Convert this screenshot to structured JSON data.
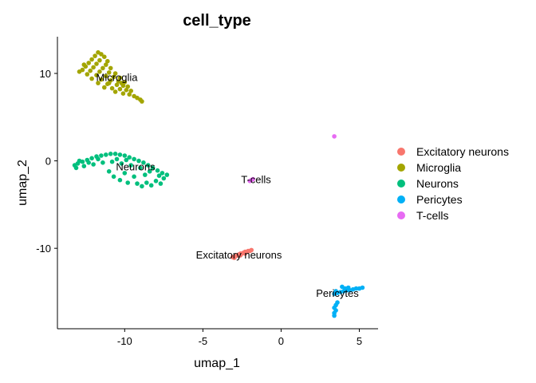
{
  "chart_data": {
    "type": "scatter",
    "title": "cell_type",
    "xlabel": "umap_1",
    "ylabel": "umap_2",
    "xlim": [
      -14.3,
      6.2
    ],
    "ylim": [
      -19.2,
      14.2
    ],
    "xticks": [
      -10,
      -5,
      0,
      5
    ],
    "yticks": [
      -10,
      0,
      10
    ],
    "xtick_labels": [
      "-10",
      "-5",
      "0",
      "5"
    ],
    "ytick_labels": [
      "-10",
      "0",
      "10"
    ],
    "grid": false,
    "legend_position": "right",
    "series": [
      {
        "name": "Excitatory neurons",
        "color": "#F8766D",
        "points": [
          [
            -3.1,
            -11.0
          ],
          [
            -2.9,
            -10.9
          ],
          [
            -2.8,
            -10.8
          ],
          [
            -2.7,
            -10.7
          ],
          [
            -2.6,
            -10.6
          ],
          [
            -2.5,
            -10.6
          ],
          [
            -2.4,
            -10.5
          ],
          [
            -2.3,
            -10.4
          ],
          [
            -2.2,
            -10.4
          ],
          [
            -2.1,
            -10.3
          ],
          [
            -2.0,
            -10.3
          ],
          [
            -1.9,
            -10.2
          ],
          [
            -3.0,
            -11.1
          ],
          [
            -2.6,
            -10.8
          ],
          [
            -2.3,
            -10.6
          ]
        ]
      },
      {
        "name": "Microglia",
        "color": "#A3A500",
        "points": [
          [
            -11.7,
            12.4
          ],
          [
            -11.5,
            12.2
          ],
          [
            -11.9,
            12.0
          ],
          [
            -11.3,
            11.9
          ],
          [
            -12.1,
            11.6
          ],
          [
            -11.6,
            11.5
          ],
          [
            -11.1,
            11.4
          ],
          [
            -12.3,
            11.2
          ],
          [
            -11.8,
            11.1
          ],
          [
            -11.2,
            11.0
          ],
          [
            -12.5,
            10.8
          ],
          [
            -12.0,
            10.7
          ],
          [
            -11.4,
            10.6
          ],
          [
            -10.9,
            10.6
          ],
          [
            -12.7,
            10.4
          ],
          [
            -12.2,
            10.3
          ],
          [
            -11.6,
            10.2
          ],
          [
            -11.0,
            10.1
          ],
          [
            -10.6,
            10.0
          ],
          [
            -12.4,
            9.9
          ],
          [
            -11.8,
            9.8
          ],
          [
            -11.2,
            9.7
          ],
          [
            -10.7,
            9.6
          ],
          [
            -10.3,
            9.5
          ],
          [
            -12.1,
            9.4
          ],
          [
            -11.5,
            9.3
          ],
          [
            -10.9,
            9.2
          ],
          [
            -10.4,
            9.1
          ],
          [
            -10.0,
            9.0
          ],
          [
            -11.7,
            8.9
          ],
          [
            -11.1,
            8.8
          ],
          [
            -10.5,
            8.7
          ],
          [
            -10.1,
            8.6
          ],
          [
            -9.8,
            8.5
          ],
          [
            -11.3,
            8.4
          ],
          [
            -10.8,
            8.3
          ],
          [
            -10.3,
            8.2
          ],
          [
            -9.9,
            8.1
          ],
          [
            -9.6,
            8.0
          ],
          [
            -10.6,
            7.9
          ],
          [
            -10.1,
            7.7
          ],
          [
            -9.7,
            7.6
          ],
          [
            -9.4,
            7.4
          ],
          [
            -9.2,
            7.2
          ],
          [
            -9.0,
            7.0
          ],
          [
            -8.9,
            6.8
          ],
          [
            -12.6,
            11.0
          ],
          [
            -11.0,
            8.9
          ],
          [
            -10.2,
            8.9
          ],
          [
            -12.9,
            10.2
          ]
        ]
      },
      {
        "name": "Neurons",
        "color": "#00BF7D",
        "points": [
          [
            -13.2,
            -0.5
          ],
          [
            -13.0,
            -0.3
          ],
          [
            -12.7,
            -0.1
          ],
          [
            -12.4,
            0.1
          ],
          [
            -12.1,
            0.3
          ],
          [
            -11.8,
            0.5
          ],
          [
            -11.5,
            0.6
          ],
          [
            -11.2,
            0.7
          ],
          [
            -10.9,
            0.8
          ],
          [
            -10.6,
            0.8
          ],
          [
            -10.3,
            0.7
          ],
          [
            -10.0,
            0.6
          ],
          [
            -9.7,
            0.4
          ],
          [
            -9.4,
            0.2
          ],
          [
            -9.1,
            0.0
          ],
          [
            -8.8,
            -0.2
          ],
          [
            -8.5,
            -0.5
          ],
          [
            -8.2,
            -0.8
          ],
          [
            -7.9,
            -1.1
          ],
          [
            -7.6,
            -1.4
          ],
          [
            -7.3,
            -1.6
          ],
          [
            -13.1,
            -0.8
          ],
          [
            -12.6,
            -0.6
          ],
          [
            -12.0,
            -0.4
          ],
          [
            -11.4,
            -0.2
          ],
          [
            -10.8,
            -0.1
          ],
          [
            -10.2,
            -0.3
          ],
          [
            -9.6,
            -0.5
          ],
          [
            -9.0,
            -0.8
          ],
          [
            -8.4,
            -1.2
          ],
          [
            -7.8,
            -1.7
          ],
          [
            -7.5,
            -2.0
          ],
          [
            -8.0,
            -2.3
          ],
          [
            -8.6,
            -2.5
          ],
          [
            -9.2,
            -2.6
          ],
          [
            -9.8,
            -2.5
          ],
          [
            -10.3,
            -2.2
          ],
          [
            -10.7,
            -1.8
          ],
          [
            -11.0,
            -1.2
          ],
          [
            -12.3,
            -0.2
          ],
          [
            -11.7,
            0.2
          ],
          [
            -10.5,
            0.2
          ],
          [
            -9.9,
            0.1
          ],
          [
            -8.7,
            -1.6
          ],
          [
            -9.4,
            -1.8
          ],
          [
            -7.7,
            -2.6
          ],
          [
            -8.3,
            -2.8
          ],
          [
            -8.9,
            -2.9
          ],
          [
            -10.0,
            -1.4
          ],
          [
            -12.9,
            0.0
          ]
        ]
      },
      {
        "name": "Pericytes",
        "color": "#00B0F6",
        "points": [
          [
            3.4,
            -15.2
          ],
          [
            3.6,
            -15.1
          ],
          [
            3.8,
            -15.0
          ],
          [
            4.0,
            -14.9
          ],
          [
            4.2,
            -14.8
          ],
          [
            4.4,
            -14.8
          ],
          [
            4.6,
            -14.7
          ],
          [
            4.8,
            -14.6
          ],
          [
            5.0,
            -14.6
          ],
          [
            5.2,
            -14.5
          ],
          [
            3.9,
            -14.4
          ],
          [
            4.1,
            -14.6
          ],
          [
            4.3,
            -14.5
          ],
          [
            3.5,
            -14.9
          ],
          [
            3.5,
            -16.5
          ],
          [
            3.4,
            -16.8
          ],
          [
            3.5,
            -17.1
          ],
          [
            3.4,
            -17.4
          ],
          [
            3.4,
            -17.7
          ],
          [
            3.6,
            -16.2
          ]
        ]
      },
      {
        "name": "T-cells",
        "color": "#E76BF3",
        "points": [
          [
            -1.9,
            -2.2
          ],
          [
            -1.8,
            -2.1
          ],
          [
            -2.0,
            -2.3
          ],
          [
            3.4,
            2.8
          ]
        ]
      }
    ],
    "cluster_labels": [
      {
        "text": "Microglia",
        "x": -10.5,
        "y": 9.5
      },
      {
        "text": "Neurons",
        "x": -9.3,
        "y": -0.7
      },
      {
        "text": "T-cells",
        "x": -1.6,
        "y": -2.2
      },
      {
        "text": "Excitatory neurons",
        "x": -2.7,
        "y": -10.8
      },
      {
        "text": "Pericytes",
        "x": 3.6,
        "y": -15.2
      }
    ]
  }
}
